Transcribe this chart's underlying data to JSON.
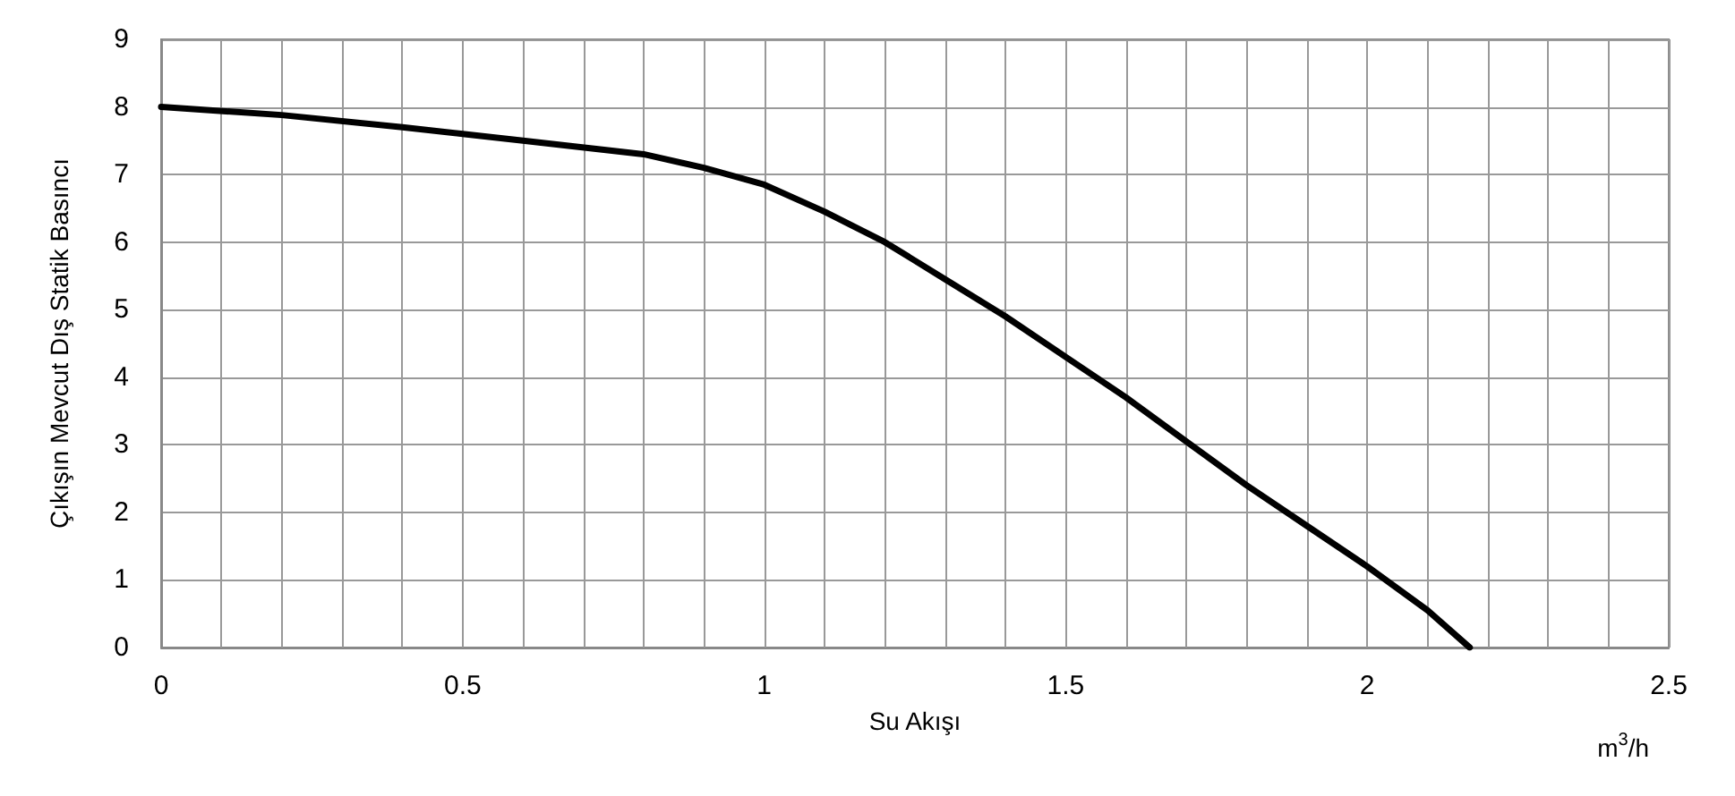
{
  "chart_data": {
    "type": "line",
    "xlabel": "Su Akışı",
    "ylabel": "Çıkışın Mevcut Dış Statik Basıncı",
    "x": [
      0,
      0.2,
      0.4,
      0.5,
      0.6,
      0.8,
      0.9,
      1.0,
      1.1,
      1.2,
      1.3,
      1.4,
      1.5,
      1.6,
      1.7,
      1.8,
      1.9,
      2.0,
      2.1,
      2.17
    ],
    "series": [
      {
        "color": "#000000",
        "values": [
          8.0,
          7.88,
          7.7,
          7.6,
          7.5,
          7.3,
          7.1,
          6.85,
          6.45,
          6.0,
          5.45,
          4.9,
          4.3,
          3.7,
          3.05,
          2.4,
          1.8,
          1.2,
          0.55,
          0
        ]
      }
    ],
    "xlim": [
      0,
      2.5
    ],
    "xticks": [
      0,
      {
        "value": 0.1,
        "label": null
      },
      {
        "value": 0.2,
        "label": null
      },
      {
        "value": 0.3,
        "label": null
      },
      {
        "value": 0.4,
        "label": null
      },
      0.5,
      {
        "value": 0.6,
        "label": null
      },
      {
        "value": 0.7,
        "label": null
      },
      {
        "value": 0.8,
        "label": null
      },
      {
        "value": 0.9,
        "label": null
      },
      1,
      {
        "value": 1.1,
        "label": null
      },
      {
        "value": 1.2,
        "label": null
      },
      {
        "value": 1.3,
        "label": null
      },
      {
        "value": 1.4,
        "label": null
      },
      1.5,
      {
        "value": 1.6,
        "label": null
      },
      {
        "value": 1.7,
        "label": null
      },
      {
        "value": 1.8,
        "label": null
      },
      {
        "value": 1.9,
        "label": null
      },
      2,
      {
        "value": 2.1,
        "label": null
      },
      {
        "value": 2.2,
        "label": null
      },
      {
        "value": 2.3,
        "label": null
      },
      {
        "value": 2.4,
        "label": null
      },
      2.5
    ],
    "ylim": [
      0,
      9
    ],
    "yticks": [
      0,
      1,
      2,
      3,
      4,
      5,
      6,
      7,
      8,
      9
    ],
    "grid": true,
    "marker": "none",
    "line_style": "solid",
    "annotations": [
      "m$^{3}$/h"
    ]
  }
}
